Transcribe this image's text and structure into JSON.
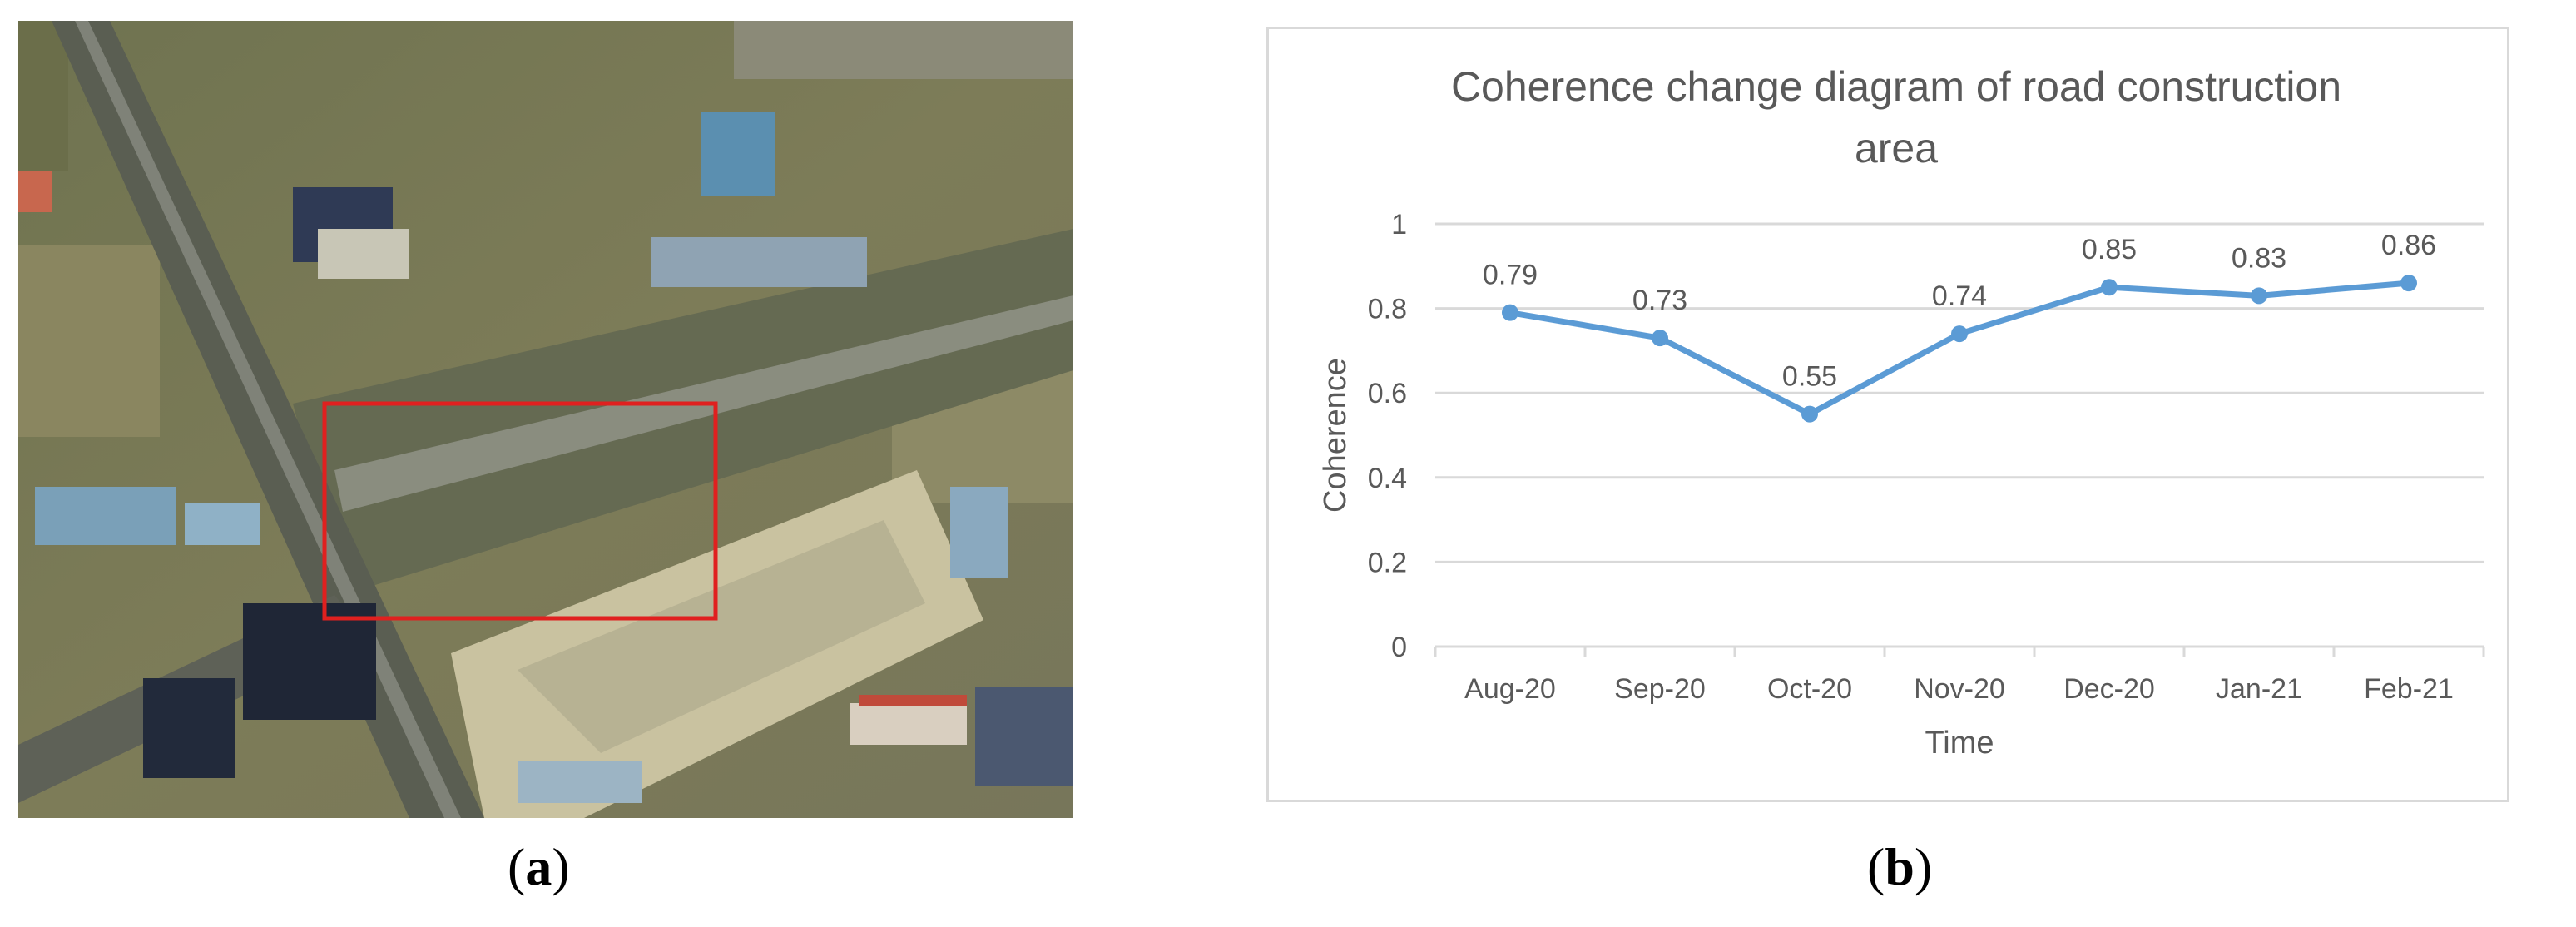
{
  "panels": {
    "a_label_letter": "a",
    "b_label_letter": "b"
  },
  "colors": {
    "series": "#5b9bd5",
    "grid": "#d9d9d9",
    "text": "#595959",
    "highlight_box": "#e0201f"
  },
  "chart_data": {
    "type": "line",
    "title_line1": "Coherence change diagram of road construction",
    "title_line2": "area",
    "xlabel": "Time",
    "ylabel": "Coherence",
    "categories": [
      "Aug-20",
      "Sep-20",
      "Oct-20",
      "Nov-20",
      "Dec-20",
      "Jan-21",
      "Feb-21"
    ],
    "series": [
      {
        "values": [
          0.79,
          0.73,
          0.55,
          0.74,
          0.85,
          0.83,
          0.86
        ],
        "labels": [
          "0.79",
          "0.73",
          "0.55",
          "0.74",
          "0.85",
          "0.83",
          "0.86"
        ]
      }
    ],
    "ylim": [
      0,
      1
    ],
    "yticks": [
      "0",
      "0.2",
      "0.4",
      "0.6",
      "0.8",
      "1"
    ],
    "grid": true,
    "legend": "none"
  }
}
